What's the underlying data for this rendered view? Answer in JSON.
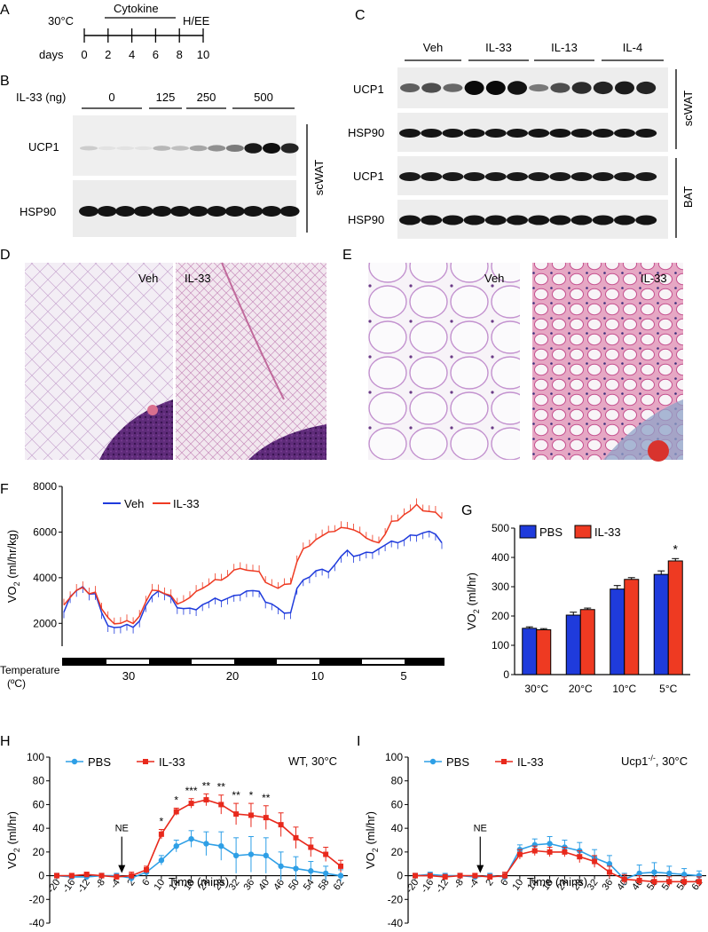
{
  "panels": {
    "A": {
      "letter": "A",
      "temp": "30°C",
      "cytokine": "Cytokine",
      "end": "H/EE",
      "days_label": "days",
      "days": [
        "0",
        "2",
        "4",
        "6",
        "8",
        "10"
      ]
    },
    "B": {
      "letter": "B",
      "dose_label": "IL-33 (ng)",
      "doses": [
        "0",
        "125",
        "250",
        "500"
      ],
      "bands": [
        "UCP1",
        "HSP90"
      ],
      "tissue": "scWAT",
      "ucp1_levels": [
        0.12,
        0.02,
        0.02,
        0.02,
        0.22,
        0.18,
        0.3,
        0.4,
        0.5,
        0.95,
        1,
        0.9
      ]
    },
    "C": {
      "letter": "C",
      "groups": [
        "Veh",
        "IL-33",
        "IL-13",
        "IL-4"
      ],
      "bands": [
        "UCP1",
        "HSP90",
        "UCP1",
        "HSP90"
      ],
      "tissues": [
        "scWAT",
        "BAT"
      ],
      "ucp1_levels": [
        0.5,
        0.6,
        0.45,
        1,
        1,
        0.95,
        0.35,
        0.6,
        0.8,
        0.85,
        0.9,
        0.85
      ]
    },
    "D": {
      "letter": "D",
      "labels": [
        "Veh",
        "IL-33"
      ]
    },
    "E": {
      "letter": "E",
      "labels": [
        "Veh",
        "IL-33"
      ]
    },
    "F": {
      "letter": "F",
      "legend": [
        "Veh",
        "IL-33"
      ],
      "temp_label": "Temperature",
      "temp_unit": "(ºC)",
      "temps": [
        "30",
        "20",
        "10",
        "5"
      ]
    },
    "G": {
      "letter": "G"
    },
    "H": {
      "letter": "H",
      "condition": "WT, 30°C",
      "ne": "NE",
      "stars": [
        "*",
        "*",
        "***",
        "**",
        "**",
        "**",
        "*",
        "**"
      ]
    },
    "I": {
      "letter": "I",
      "condition": "Ucp1",
      "condition_sup": "-/-",
      "condition_rest": ", 30°C",
      "ne": "NE"
    }
  },
  "colors": {
    "blue": "#1f3bdc",
    "red": "#ee3a22",
    "pbs_line": "#2e9fe6",
    "il33_line": "#e8291c"
  },
  "chart_data": [
    {
      "type": "line",
      "id": "F",
      "ylabel": "VO2 (ml/hr/kg)",
      "ylim": [
        1000,
        8000
      ],
      "yticks": [
        2000,
        4000,
        6000,
        8000
      ],
      "series": [
        {
          "name": "Veh",
          "values": [
            2600,
            3200,
            3400,
            3500,
            3350,
            3300,
            2400,
            2000,
            1850,
            1800,
            1850,
            1900,
            2100,
            2700,
            3300,
            3450,
            3250,
            3050,
            2750,
            2650,
            2600,
            2700,
            2850,
            2900,
            3000,
            3050,
            3100,
            3150,
            3350,
            3450,
            3400,
            3300,
            3000,
            2850,
            2600,
            2550,
            2500,
            3500,
            3800,
            4100,
            4300,
            4300,
            4350,
            4600,
            4900,
            5100,
            5000,
            5000,
            5050,
            5200,
            5300,
            5400,
            5500,
            5600,
            5650,
            5800,
            5950,
            6000,
            6000,
            5800,
            5600
          ]
        },
        {
          "name": "IL-33",
          "values": [
            2700,
            3200,
            3450,
            3500,
            3400,
            3400,
            2600,
            2150,
            2050,
            2000,
            2050,
            2100,
            2350,
            2900,
            3350,
            3500,
            3300,
            3150,
            2950,
            3000,
            3100,
            3300,
            3600,
            3700,
            3850,
            4000,
            4100,
            4300,
            4300,
            4400,
            4300,
            4200,
            3900,
            3700,
            3500,
            3600,
            3800,
            4700,
            5200,
            5500,
            5700,
            5800,
            5900,
            6100,
            6200,
            6100,
            6200,
            6000,
            5700,
            5500,
            5600,
            5900,
            6400,
            6600,
            6800,
            6900,
            7100,
            7000,
            6900,
            6800,
            6700
          ]
        }
      ],
      "temperature": [
        "30",
        "20",
        "10",
        "5"
      ]
    },
    {
      "type": "bar",
      "id": "G",
      "categories": [
        "30°C",
        "20°C",
        "10°C",
        "5°C"
      ],
      "ylabel": "VO2 (ml/hr)",
      "ylim": [
        0,
        500
      ],
      "yticks": [
        0,
        100,
        200,
        300,
        400,
        500
      ],
      "series": [
        {
          "name": "PBS",
          "values": [
            158,
            203,
            292,
            342
          ],
          "errors": [
            5,
            10,
            12,
            12
          ]
        },
        {
          "name": "IL-33",
          "values": [
            153,
            222,
            325,
            388
          ],
          "errors": [
            4,
            5,
            6,
            8
          ]
        }
      ],
      "annotations": [
        {
          "category": "5°C",
          "text": "*"
        }
      ]
    },
    {
      "type": "line",
      "id": "H",
      "xlabel": "Time (mins)",
      "ylabel": "VO2 (ml/hr)",
      "ylim": [
        -40,
        100
      ],
      "xticks": [
        "-20",
        "-16",
        "-12",
        "-8",
        "-4",
        "2",
        "6",
        "10",
        "14",
        "18",
        "24",
        "28",
        "32",
        "36",
        "40",
        "46",
        "50",
        "54",
        "58",
        "62"
      ],
      "yticks": [
        -40,
        -20,
        0,
        20,
        40,
        60,
        80,
        100
      ],
      "series": [
        {
          "name": "PBS",
          "values": [
            0,
            -1,
            -1,
            0,
            0,
            -2,
            3,
            13,
            25,
            31,
            27,
            25,
            17,
            18,
            17,
            8,
            6,
            4,
            2,
            0
          ],
          "errors": [
            2,
            2,
            2,
            2,
            2,
            3,
            3,
            4,
            5,
            7,
            10,
            12,
            15,
            15,
            15,
            12,
            10,
            8,
            6,
            5
          ]
        },
        {
          "name": "IL-33",
          "values": [
            0,
            0,
            1,
            0,
            -1,
            0,
            5,
            35,
            54,
            61,
            64,
            60,
            52,
            51,
            49,
            43,
            32,
            24,
            18,
            8
          ],
          "errors": [
            2,
            2,
            2,
            2,
            2,
            3,
            3,
            4,
            3,
            4,
            5,
            8,
            9,
            10,
            10,
            10,
            9,
            8,
            6,
            5
          ]
        }
      ]
    },
    {
      "type": "line",
      "id": "I",
      "xlabel": "Time (mins)",
      "ylabel": "VO2 (ml/hr)",
      "ylim": [
        -40,
        100
      ],
      "xticks": [
        "-20",
        "-16",
        "-12",
        "-8",
        "-4",
        "2",
        "6",
        "10",
        "14",
        "18",
        "24",
        "28",
        "32",
        "36",
        "40",
        "46",
        "50",
        "54",
        "58",
        "62"
      ],
      "yticks": [
        -40,
        -20,
        0,
        20,
        40,
        60,
        80,
        100
      ],
      "series": [
        {
          "name": "PBS",
          "values": [
            0,
            1,
            0,
            0,
            -1,
            0,
            -1,
            22,
            26,
            27,
            24,
            21,
            15,
            10,
            -3,
            2,
            3,
            2,
            1,
            0
          ],
          "errors": [
            2,
            2,
            2,
            2,
            2,
            2,
            3,
            4,
            5,
            6,
            6,
            7,
            7,
            7,
            5,
            7,
            8,
            6,
            5,
            4
          ]
        },
        {
          "name": "IL-33",
          "values": [
            0,
            0,
            -1,
            0,
            0,
            -1,
            0,
            18,
            21,
            20,
            20,
            16,
            12,
            3,
            -3,
            -4,
            -5,
            -5,
            -5,
            -5
          ],
          "errors": [
            2,
            2,
            2,
            2,
            2,
            2,
            3,
            4,
            4,
            4,
            4,
            5,
            5,
            5,
            4,
            4,
            4,
            4,
            4,
            4
          ]
        }
      ]
    }
  ]
}
